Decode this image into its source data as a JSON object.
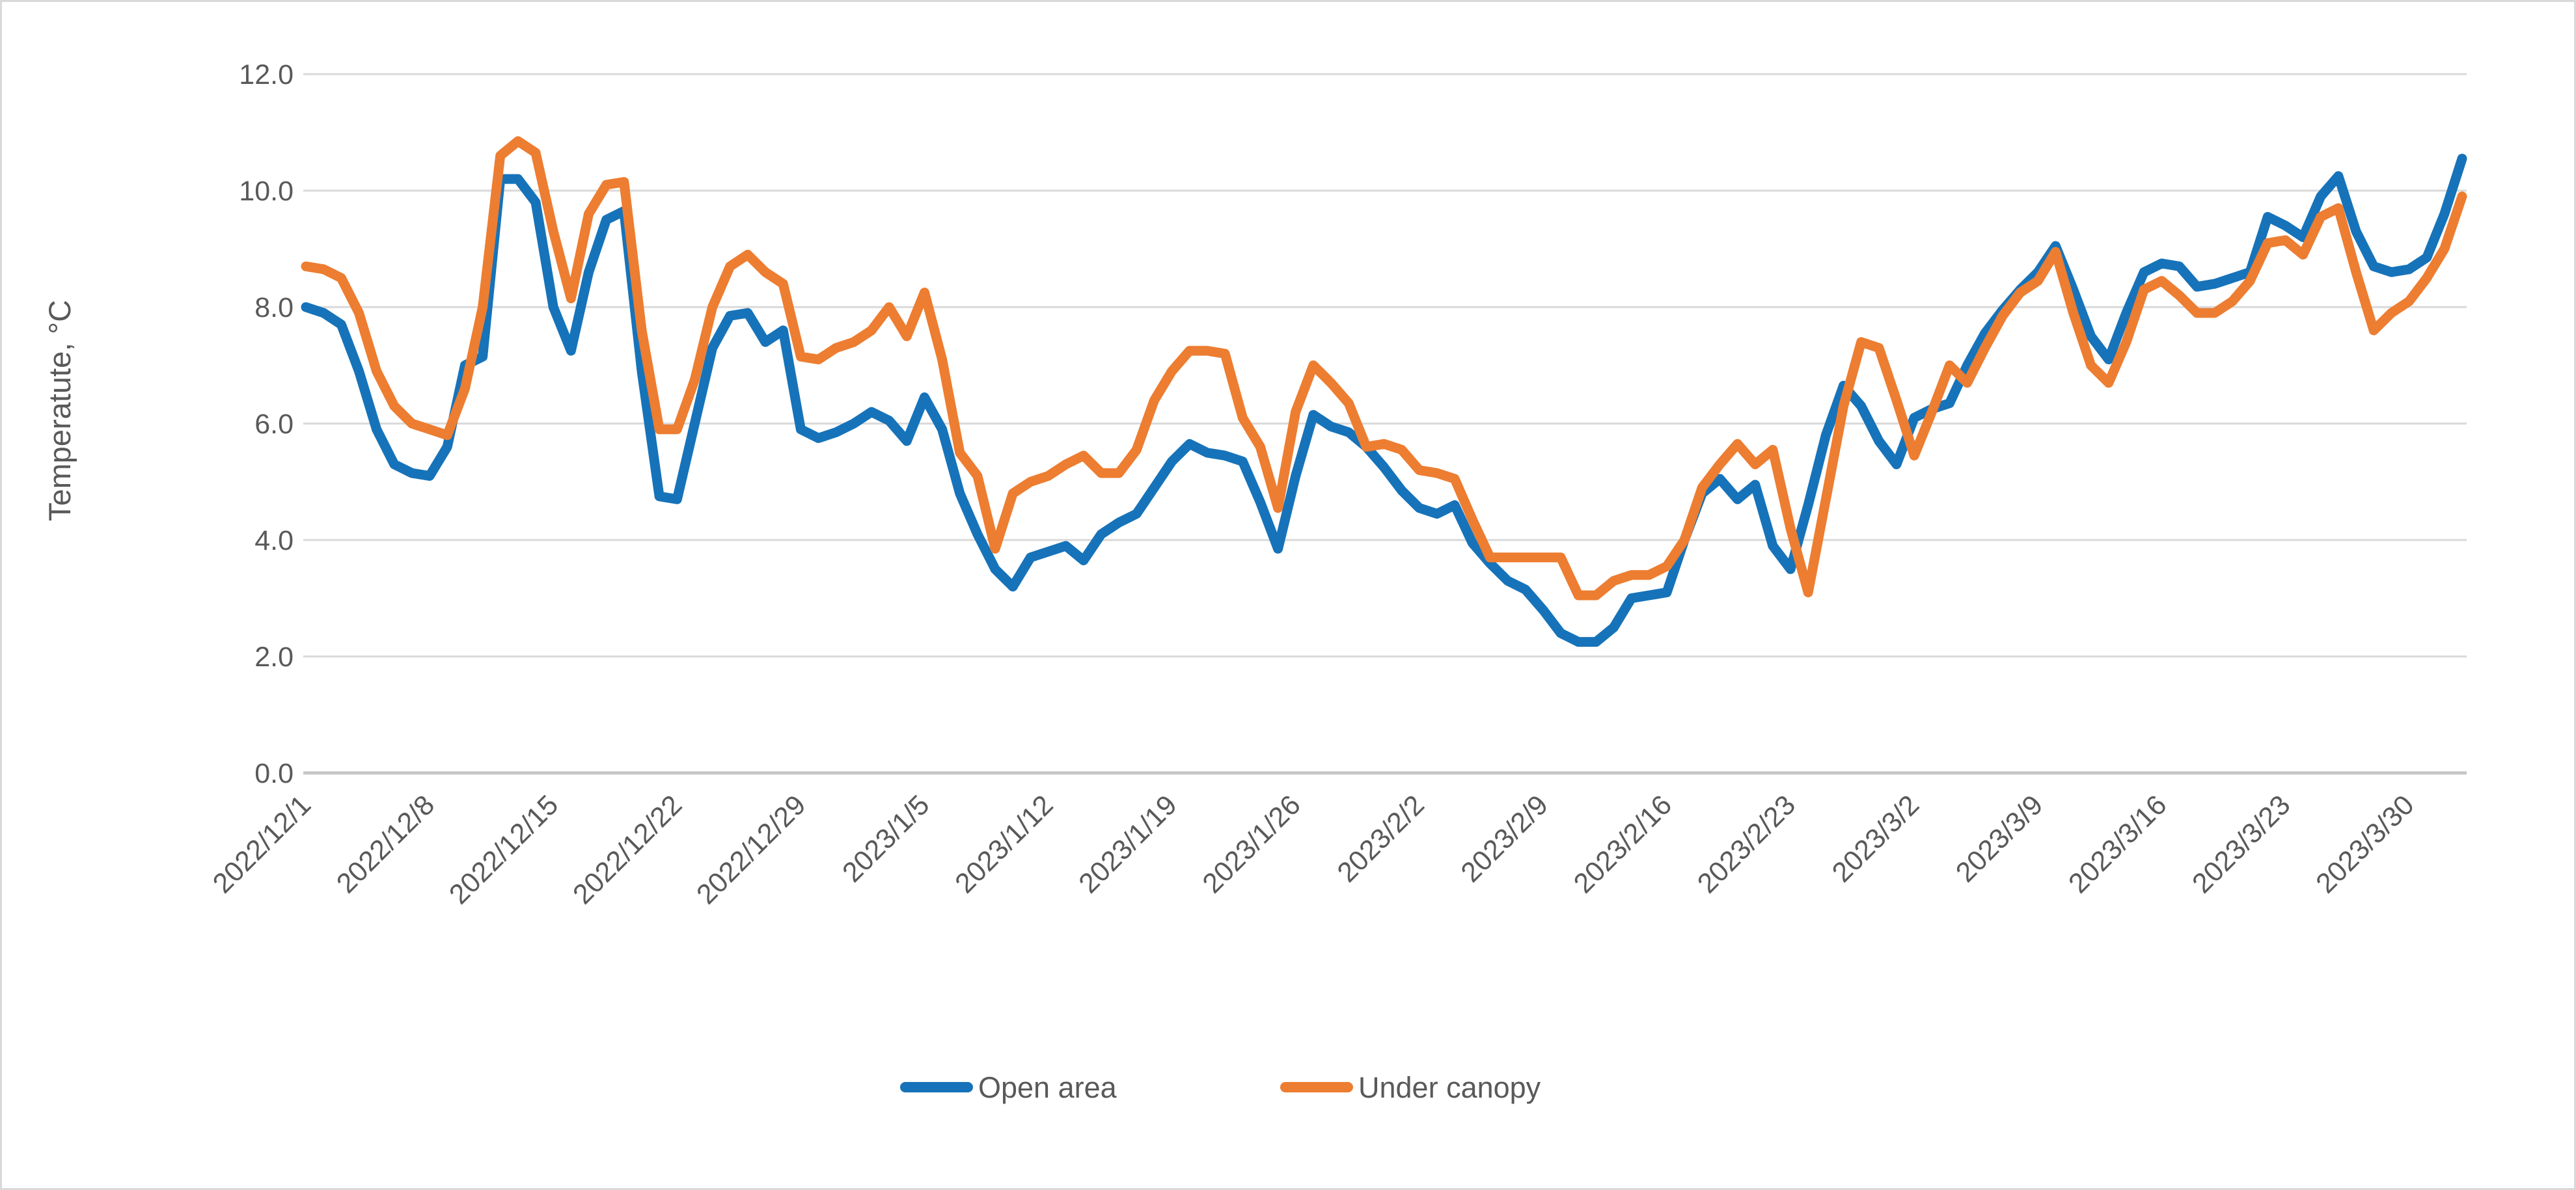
{
  "chart_data": {
    "type": "line",
    "title": "",
    "ylabel": "Temperatute, °C",
    "xlabel": "",
    "ylim": [
      0.0,
      12.0
    ],
    "ytick_step": 2.0,
    "ytick_labels": [
      "0.0",
      "2.0",
      "4.0",
      "6.0",
      "8.0",
      "10.0",
      "12.0"
    ],
    "grid": "horizontal",
    "legend_position": "bottom",
    "x_tick_labels": [
      "2022/12/1",
      "2022/12/8",
      "2022/12/15",
      "2022/12/22",
      "2022/12/29",
      "2023/1/5",
      "2023/1/12",
      "2023/1/19",
      "2023/1/26",
      "2023/2/2",
      "2023/2/9",
      "2023/2/16",
      "2023/2/23",
      "2023/3/2",
      "2023/3/9",
      "2023/3/16",
      "2023/3/23",
      "2023/3/30"
    ],
    "x_tick_every_days": 7,
    "x": [
      "2022/12/1",
      "2022/12/2",
      "2022/12/3",
      "2022/12/4",
      "2022/12/5",
      "2022/12/6",
      "2022/12/7",
      "2022/12/8",
      "2022/12/9",
      "2022/12/10",
      "2022/12/11",
      "2022/12/12",
      "2022/12/13",
      "2022/12/14",
      "2022/12/15",
      "2022/12/16",
      "2022/12/17",
      "2022/12/18",
      "2022/12/19",
      "2022/12/20",
      "2022/12/21",
      "2022/12/22",
      "2022/12/23",
      "2022/12/24",
      "2022/12/25",
      "2022/12/26",
      "2022/12/27",
      "2022/12/28",
      "2022/12/29",
      "2022/12/30",
      "2022/12/31",
      "2023/1/1",
      "2023/1/2",
      "2023/1/3",
      "2023/1/4",
      "2023/1/5",
      "2023/1/6",
      "2023/1/7",
      "2023/1/8",
      "2023/1/9",
      "2023/1/10",
      "2023/1/11",
      "2023/1/12",
      "2023/1/13",
      "2023/1/14",
      "2023/1/15",
      "2023/1/16",
      "2023/1/17",
      "2023/1/18",
      "2023/1/19",
      "2023/1/20",
      "2023/1/21",
      "2023/1/22",
      "2023/1/23",
      "2023/1/24",
      "2023/1/25",
      "2023/1/26",
      "2023/1/27",
      "2023/1/28",
      "2023/1/29",
      "2023/1/30",
      "2023/1/31",
      "2023/2/1",
      "2023/2/2",
      "2023/2/3",
      "2023/2/4",
      "2023/2/5",
      "2023/2/6",
      "2023/2/7",
      "2023/2/8",
      "2023/2/9",
      "2023/2/10",
      "2023/2/11",
      "2023/2/12",
      "2023/2/13",
      "2023/2/14",
      "2023/2/15",
      "2023/2/16",
      "2023/2/17",
      "2023/2/18",
      "2023/2/19",
      "2023/2/20",
      "2023/2/21",
      "2023/2/22",
      "2023/2/23",
      "2023/2/24",
      "2023/2/25",
      "2023/2/26",
      "2023/2/27",
      "2023/2/28",
      "2023/3/1",
      "2023/3/2",
      "2023/3/3",
      "2023/3/4",
      "2023/3/5",
      "2023/3/6",
      "2023/3/7",
      "2023/3/8",
      "2023/3/9",
      "2023/3/10",
      "2023/3/11",
      "2023/3/12",
      "2023/3/13",
      "2023/3/14",
      "2023/3/15",
      "2023/3/16",
      "2023/3/17",
      "2023/3/18",
      "2023/3/19",
      "2023/3/20",
      "2023/3/21",
      "2023/3/22",
      "2023/3/23",
      "2023/3/24",
      "2023/3/25",
      "2023/3/26",
      "2023/3/27",
      "2023/3/28",
      "2023/3/29",
      "2023/3/30",
      "2023/3/31",
      "2023/4/1",
      "2023/4/2"
    ],
    "series": [
      {
        "name": "Open area",
        "color": "#1673b9",
        "values": [
          8.0,
          7.9,
          7.7,
          6.9,
          5.9,
          5.3,
          5.15,
          5.1,
          5.6,
          7.0,
          7.15,
          10.2,
          10.2,
          9.8,
          8.0,
          7.25,
          8.6,
          9.5,
          9.65,
          6.9,
          4.75,
          4.7,
          6.0,
          7.3,
          7.85,
          7.9,
          7.4,
          7.6,
          5.9,
          5.75,
          5.85,
          6.0,
          6.2,
          6.05,
          5.7,
          6.45,
          5.9,
          4.8,
          4.1,
          3.5,
          3.2,
          3.7,
          3.8,
          3.9,
          3.65,
          4.1,
          4.3,
          4.45,
          4.9,
          5.35,
          5.65,
          5.5,
          5.45,
          5.35,
          4.65,
          3.85,
          5.1,
          6.15,
          5.95,
          5.85,
          5.6,
          5.25,
          4.85,
          4.55,
          4.45,
          4.6,
          3.95,
          3.6,
          3.3,
          3.15,
          2.8,
          2.4,
          2.25,
          2.25,
          2.5,
          3.0,
          3.05,
          3.1,
          4.0,
          4.8,
          5.05,
          4.7,
          4.95,
          3.9,
          3.5,
          4.6,
          5.8,
          6.65,
          6.3,
          5.7,
          5.3,
          6.1,
          6.25,
          6.35,
          7.0,
          7.55,
          7.95,
          8.3,
          8.6,
          9.05,
          8.3,
          7.5,
          7.1,
          7.9,
          8.6,
          8.75,
          8.7,
          8.35,
          8.4,
          8.5,
          8.6,
          9.55,
          9.4,
          9.2,
          9.9,
          10.25,
          9.3,
          8.7,
          8.6,
          8.65,
          8.85,
          9.6,
          10.55
        ]
      },
      {
        "name": "Under canopy",
        "color": "#ed7d31",
        "values": [
          8.7,
          8.65,
          8.5,
          7.9,
          6.9,
          6.3,
          6.0,
          5.9,
          5.8,
          6.6,
          8.0,
          10.6,
          10.85,
          10.65,
          9.3,
          8.15,
          9.6,
          10.1,
          10.15,
          7.6,
          5.9,
          5.9,
          6.75,
          8.0,
          8.7,
          8.9,
          8.6,
          8.4,
          7.15,
          7.1,
          7.3,
          7.4,
          7.6,
          8.0,
          7.5,
          8.25,
          7.1,
          5.5,
          5.1,
          3.85,
          4.8,
          5.0,
          5.1,
          5.3,
          5.45,
          5.15,
          5.15,
          5.55,
          6.4,
          6.9,
          7.25,
          7.25,
          7.2,
          6.1,
          5.6,
          4.55,
          6.2,
          7.0,
          6.7,
          6.35,
          5.6,
          5.65,
          5.55,
          5.2,
          5.15,
          5.05,
          4.35,
          3.7,
          3.7,
          3.7,
          3.7,
          3.7,
          3.05,
          3.05,
          3.3,
          3.4,
          3.4,
          3.55,
          4.0,
          4.9,
          5.3,
          5.65,
          5.3,
          5.55,
          4.2,
          3.1,
          4.7,
          6.3,
          7.4,
          7.3,
          6.4,
          5.45,
          6.2,
          7.0,
          6.7,
          7.3,
          7.85,
          8.25,
          8.45,
          8.95,
          7.9,
          7.0,
          6.7,
          7.4,
          8.3,
          8.45,
          8.2,
          7.9,
          7.9,
          8.1,
          8.45,
          9.1,
          9.15,
          8.9,
          9.55,
          9.7,
          8.6,
          7.6,
          7.9,
          8.1,
          8.5,
          9.0,
          9.9
        ]
      }
    ],
    "colors": {
      "gridline": "#d9d9d9",
      "baseline": "#c6c6c6",
      "text": "#595959",
      "chart_border": "#d9d9d9",
      "background": "#ffffff"
    }
  },
  "legend": {
    "items": [
      {
        "label": "Open area",
        "color": "#1673b9"
      },
      {
        "label": "Under canopy",
        "color": "#ed7d31"
      }
    ]
  }
}
